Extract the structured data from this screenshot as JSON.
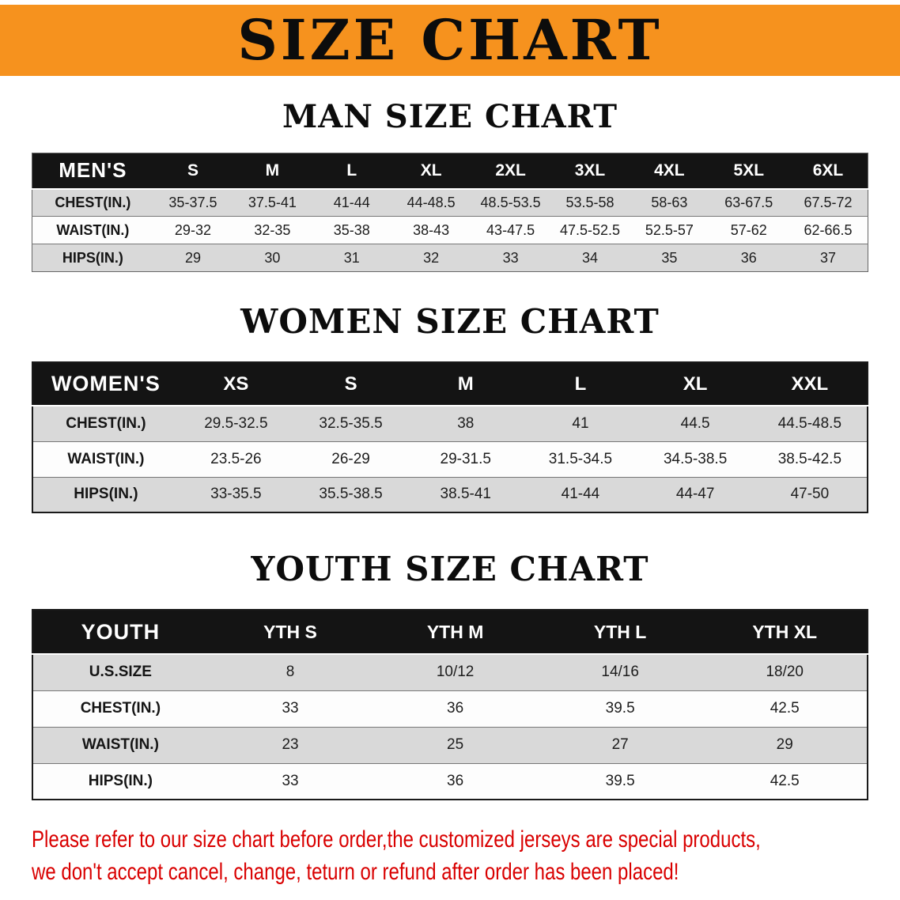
{
  "banner": {
    "title": "SIZE CHART"
  },
  "colors": {
    "banner_bg": "#F6921E",
    "header_bg": "#141414",
    "row_alt": "#d9d9d9",
    "note_red": "#d90000"
  },
  "sections": {
    "men": {
      "heading": "MAN SIZE CHART"
    },
    "women": {
      "heading": "WOMEN SIZE CHART"
    },
    "youth": {
      "heading": "YOUTH SIZE CHART"
    }
  },
  "tables": {
    "men": {
      "header": [
        "MEN'S",
        "S",
        "M",
        "L",
        "XL",
        "2XL",
        "3XL",
        "4XL",
        "5XL",
        "6XL"
      ],
      "rows": [
        {
          "label": "CHEST(IN.)",
          "values": [
            "35-37.5",
            "37.5-41",
            "41-44",
            "44-48.5",
            "48.5-53.5",
            "53.5-58",
            "58-63",
            "63-67.5",
            "67.5-72"
          ]
        },
        {
          "label": "WAIST(IN.)",
          "values": [
            "29-32",
            "32-35",
            "35-38",
            "38-43",
            "43-47.5",
            "47.5-52.5",
            "52.5-57",
            "57-62",
            "62-66.5"
          ]
        },
        {
          "label": "HIPS(IN.)",
          "values": [
            "29",
            "30",
            "31",
            "32",
            "33",
            "34",
            "35",
            "36",
            "37"
          ]
        }
      ]
    },
    "women": {
      "header": [
        "WOMEN'S",
        "XS",
        "S",
        "M",
        "L",
        "XL",
        "XXL"
      ],
      "rows": [
        {
          "label": "CHEST(IN.)",
          "values": [
            "29.5-32.5",
            "32.5-35.5",
            "38",
            "41",
            "44.5",
            "44.5-48.5"
          ]
        },
        {
          "label": "WAIST(IN.)",
          "values": [
            "23.5-26",
            "26-29",
            "29-31.5",
            "31.5-34.5",
            "34.5-38.5",
            "38.5-42.5"
          ]
        },
        {
          "label": "HIPS(IN.)",
          "values": [
            "33-35.5",
            "35.5-38.5",
            "38.5-41",
            "41-44",
            "44-47",
            "47-50"
          ]
        }
      ]
    },
    "youth": {
      "header": [
        "YOUTH",
        "YTH S",
        "YTH M",
        "YTH L",
        "YTH XL"
      ],
      "rows": [
        {
          "label": "U.S.SIZE",
          "values": [
            "8",
            "10/12",
            "14/16",
            "18/20"
          ]
        },
        {
          "label": "CHEST(IN.)",
          "values": [
            "33",
            "36",
            "39.5",
            "42.5"
          ]
        },
        {
          "label": "WAIST(IN.)",
          "values": [
            "23",
            "25",
            "27",
            "29"
          ]
        },
        {
          "label": "HIPS(IN.)",
          "values": [
            "33",
            "36",
            "39.5",
            "42.5"
          ]
        }
      ]
    }
  },
  "note": {
    "line1": "Please refer to our size chart before order,the customized jerseys are special products,",
    "line2": "we don't accept cancel, change, teturn or refund after order has been placed!"
  }
}
